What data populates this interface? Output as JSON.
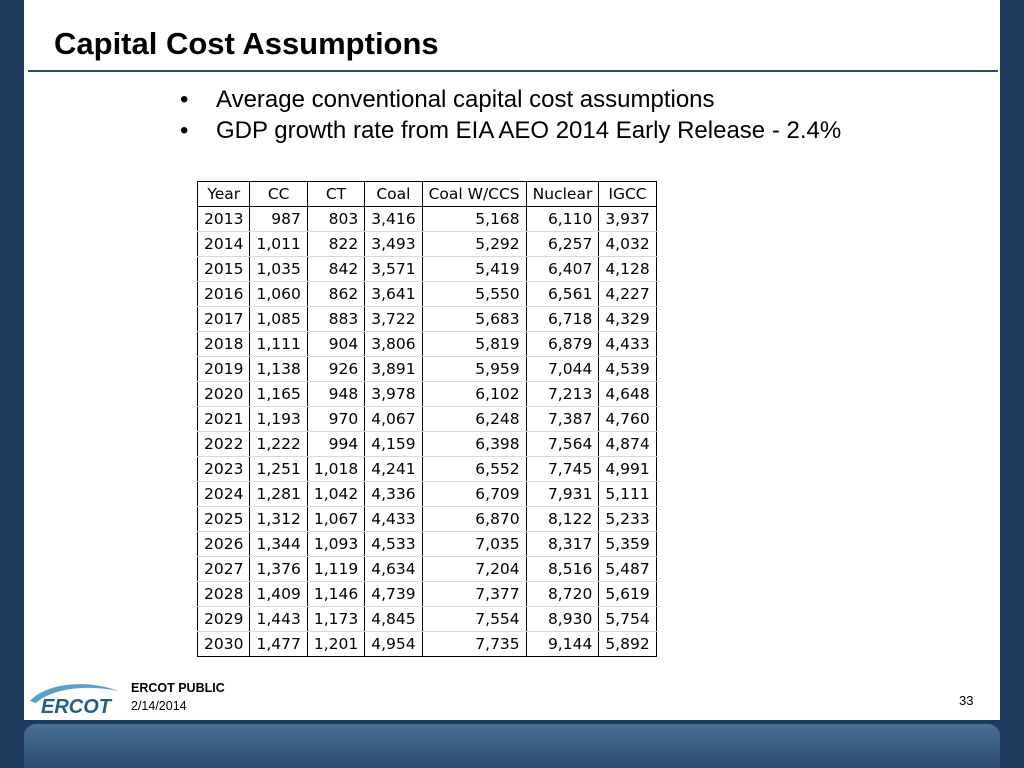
{
  "slide": {
    "title": "Capital Cost Assumptions",
    "bullets": [
      "Average conventional capital cost assumptions",
      "GDP growth rate from EIA AEO 2014 Early Release - 2.4%"
    ]
  },
  "table": {
    "headers": [
      "Year",
      "CC",
      "CT",
      "Coal",
      "Coal W/CCS",
      "Nuclear",
      "IGCC"
    ],
    "rows": [
      [
        "2013",
        "987",
        "803",
        "3,416",
        "5,168",
        "6,110",
        "3,937"
      ],
      [
        "2014",
        "1,011",
        "822",
        "3,493",
        "5,292",
        "6,257",
        "4,032"
      ],
      [
        "2015",
        "1,035",
        "842",
        "3,571",
        "5,419",
        "6,407",
        "4,128"
      ],
      [
        "2016",
        "1,060",
        "862",
        "3,641",
        "5,550",
        "6,561",
        "4,227"
      ],
      [
        "2017",
        "1,085",
        "883",
        "3,722",
        "5,683",
        "6,718",
        "4,329"
      ],
      [
        "2018",
        "1,111",
        "904",
        "3,806",
        "5,819",
        "6,879",
        "4,433"
      ],
      [
        "2019",
        "1,138",
        "926",
        "3,891",
        "5,959",
        "7,044",
        "4,539"
      ],
      [
        "2020",
        "1,165",
        "948",
        "3,978",
        "6,102",
        "7,213",
        "4,648"
      ],
      [
        "2021",
        "1,193",
        "970",
        "4,067",
        "6,248",
        "7,387",
        "4,760"
      ],
      [
        "2022",
        "1,222",
        "994",
        "4,159",
        "6,398",
        "7,564",
        "4,874"
      ],
      [
        "2023",
        "1,251",
        "1,018",
        "4,241",
        "6,552",
        "7,745",
        "4,991"
      ],
      [
        "2024",
        "1,281",
        "1,042",
        "4,336",
        "6,709",
        "7,931",
        "5,111"
      ],
      [
        "2025",
        "1,312",
        "1,067",
        "4,433",
        "6,870",
        "8,122",
        "5,233"
      ],
      [
        "2026",
        "1,344",
        "1,093",
        "4,533",
        "7,035",
        "8,317",
        "5,359"
      ],
      [
        "2027",
        "1,376",
        "1,119",
        "4,634",
        "7,204",
        "8,516",
        "5,487"
      ],
      [
        "2028",
        "1,409",
        "1,146",
        "4,739",
        "7,377",
        "8,720",
        "5,619"
      ],
      [
        "2029",
        "1,443",
        "1,173",
        "4,845",
        "7,554",
        "8,930",
        "5,754"
      ],
      [
        "2030",
        "1,477",
        "1,201",
        "4,954",
        "7,735",
        "9,144",
        "5,892"
      ]
    ]
  },
  "footer": {
    "logo_text": "ERCOT",
    "classification": "ERCOT PUBLIC",
    "date": "2/14/2014",
    "page_number": "33"
  },
  "colors": {
    "background": "#1e3a5c",
    "title_rule": "#1f4e79",
    "logo_blue": "#1f5f8b",
    "logo_swoosh": "#5aa0c8"
  }
}
